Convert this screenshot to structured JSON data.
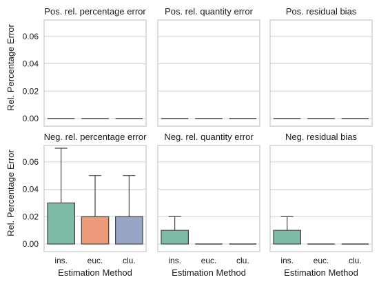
{
  "chart_data": {
    "type": "bar",
    "layout": "grid-2x3",
    "shared_ylabel": "Rel. Percentage Error",
    "shared_xlabel": "Estimation Method",
    "categories": [
      "ins.",
      "euc.",
      "clu."
    ],
    "ylim": [
      0,
      0.072
    ],
    "yticks": [
      0.0,
      0.02,
      0.04,
      0.06
    ],
    "ytick_labels": [
      "0.00",
      "0.02",
      "0.04",
      "0.06"
    ],
    "grid": true,
    "colors": [
      "#7dbba5",
      "#ec9a7a",
      "#98a5c6"
    ],
    "panels": [
      {
        "title": "Pos. rel. percentage error",
        "values": [
          0,
          0,
          0
        ],
        "whisker_high": [
          0,
          0,
          0
        ]
      },
      {
        "title": "Pos. rel. quantity error",
        "values": [
          0,
          0,
          0
        ],
        "whisker_high": [
          0,
          0,
          0
        ]
      },
      {
        "title": "Pos. residual bias",
        "values": [
          0,
          0,
          0
        ],
        "whisker_high": [
          0,
          0,
          0
        ]
      },
      {
        "title": "Neg. rel. percentage error",
        "values": [
          0.03,
          0.02,
          0.02
        ],
        "whisker_high": [
          0.07,
          0.05,
          0.05
        ]
      },
      {
        "title": "Neg. rel. quantity error",
        "values": [
          0.01,
          0,
          0
        ],
        "whisker_high": [
          0.02,
          0,
          0
        ]
      },
      {
        "title": "Neg. residual bias",
        "values": [
          0.01,
          0,
          0
        ],
        "whisker_high": [
          0.02,
          0,
          0
        ]
      }
    ]
  }
}
